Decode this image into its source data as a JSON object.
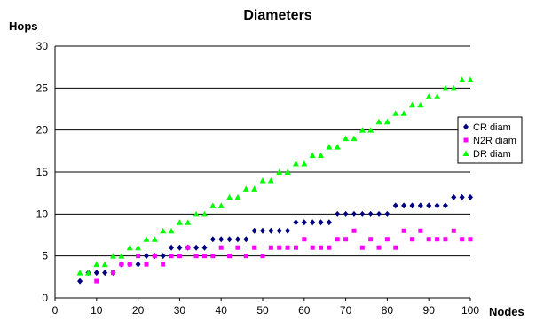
{
  "chart_data": {
    "type": "scatter",
    "title": "Diameters",
    "xlabel": "Nodes",
    "ylabel": "Hops",
    "xlim": [
      0,
      100
    ],
    "ylim": [
      0,
      30
    ],
    "xticks": [
      0,
      10,
      20,
      30,
      40,
      50,
      60,
      70,
      80,
      90,
      100
    ],
    "yticks": [
      0,
      5,
      10,
      15,
      20,
      25,
      30
    ],
    "grid": "horizontal",
    "legend": "right",
    "series": [
      {
        "name": "CR diam",
        "marker": "diamond",
        "color": "#000080",
        "points": [
          [
            6,
            2
          ],
          [
            8,
            3
          ],
          [
            10,
            3
          ],
          [
            12,
            3
          ],
          [
            14,
            3
          ],
          [
            16,
            4
          ],
          [
            18,
            4
          ],
          [
            20,
            4
          ],
          [
            22,
            5
          ],
          [
            24,
            5
          ],
          [
            26,
            5
          ],
          [
            28,
            6
          ],
          [
            30,
            6
          ],
          [
            32,
            6
          ],
          [
            34,
            6
          ],
          [
            36,
            6
          ],
          [
            38,
            7
          ],
          [
            40,
            7
          ],
          [
            42,
            7
          ],
          [
            44,
            7
          ],
          [
            46,
            7
          ],
          [
            48,
            8
          ],
          [
            50,
            8
          ],
          [
            52,
            8
          ],
          [
            54,
            8
          ],
          [
            56,
            8
          ],
          [
            58,
            9
          ],
          [
            60,
            9
          ],
          [
            62,
            9
          ],
          [
            64,
            9
          ],
          [
            66,
            9
          ],
          [
            68,
            10
          ],
          [
            70,
            10
          ],
          [
            72,
            10
          ],
          [
            74,
            10
          ],
          [
            76,
            10
          ],
          [
            78,
            10
          ],
          [
            80,
            10
          ],
          [
            82,
            11
          ],
          [
            84,
            11
          ],
          [
            86,
            11
          ],
          [
            88,
            11
          ],
          [
            90,
            11
          ],
          [
            92,
            11
          ],
          [
            94,
            11
          ],
          [
            96,
            12
          ],
          [
            98,
            12
          ],
          [
            100,
            12
          ]
        ]
      },
      {
        "name": "N2R diam",
        "marker": "square",
        "color": "#FF00FF",
        "points": [
          [
            10,
            2
          ],
          [
            14,
            3
          ],
          [
            16,
            4
          ],
          [
            18,
            4
          ],
          [
            20,
            5
          ],
          [
            22,
            4
          ],
          [
            24,
            5
          ],
          [
            26,
            4
          ],
          [
            28,
            5
          ],
          [
            30,
            5
          ],
          [
            32,
            6
          ],
          [
            34,
            5
          ],
          [
            36,
            5
          ],
          [
            38,
            5
          ],
          [
            40,
            6
          ],
          [
            42,
            5
          ],
          [
            44,
            6
          ],
          [
            46,
            5
          ],
          [
            48,
            6
          ],
          [
            50,
            5
          ],
          [
            52,
            6
          ],
          [
            54,
            6
          ],
          [
            56,
            6
          ],
          [
            58,
            6
          ],
          [
            60,
            7
          ],
          [
            62,
            6
          ],
          [
            64,
            6
          ],
          [
            66,
            6
          ],
          [
            68,
            7
          ],
          [
            70,
            7
          ],
          [
            72,
            8
          ],
          [
            74,
            6
          ],
          [
            76,
            7
          ],
          [
            78,
            6
          ],
          [
            80,
            7
          ],
          [
            82,
            6
          ],
          [
            84,
            8
          ],
          [
            86,
            7
          ],
          [
            88,
            8
          ],
          [
            90,
            7
          ],
          [
            92,
            7
          ],
          [
            94,
            7
          ],
          [
            96,
            8
          ],
          [
            98,
            7
          ],
          [
            100,
            7
          ]
        ]
      },
      {
        "name": "DR diam",
        "marker": "triangle",
        "color": "#00FF00",
        "points": [
          [
            6,
            3
          ],
          [
            8,
            3
          ],
          [
            10,
            4
          ],
          [
            12,
            4
          ],
          [
            14,
            5
          ],
          [
            16,
            5
          ],
          [
            18,
            6
          ],
          [
            20,
            6
          ],
          [
            22,
            7
          ],
          [
            24,
            7
          ],
          [
            26,
            8
          ],
          [
            28,
            8
          ],
          [
            30,
            9
          ],
          [
            32,
            9
          ],
          [
            34,
            10
          ],
          [
            36,
            10
          ],
          [
            38,
            11
          ],
          [
            40,
            11
          ],
          [
            42,
            12
          ],
          [
            44,
            12
          ],
          [
            46,
            13
          ],
          [
            48,
            13
          ],
          [
            50,
            14
          ],
          [
            52,
            14
          ],
          [
            54,
            15
          ],
          [
            56,
            15
          ],
          [
            58,
            16
          ],
          [
            60,
            16
          ],
          [
            62,
            17
          ],
          [
            64,
            17
          ],
          [
            66,
            18
          ],
          [
            68,
            18
          ],
          [
            70,
            19
          ],
          [
            72,
            19
          ],
          [
            74,
            20
          ],
          [
            76,
            20
          ],
          [
            78,
            21
          ],
          [
            80,
            21
          ],
          [
            82,
            22
          ],
          [
            84,
            22
          ],
          [
            86,
            23
          ],
          [
            88,
            23
          ],
          [
            90,
            24
          ],
          [
            92,
            24
          ],
          [
            94,
            25
          ],
          [
            96,
            25
          ],
          [
            98,
            26
          ],
          [
            100,
            26
          ]
        ]
      }
    ]
  }
}
